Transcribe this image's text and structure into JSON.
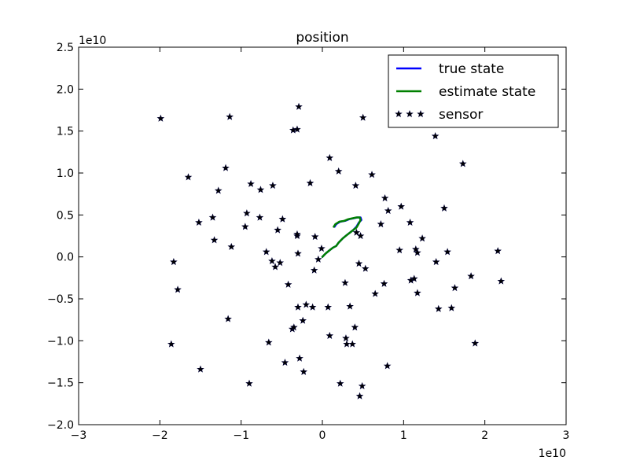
{
  "chart_data": {
    "type": "scatter",
    "title": "position",
    "xlabel": "",
    "ylabel": "",
    "x_offset_label": "1e10",
    "y_offset_label": "1e10",
    "xlim": [
      -3,
      3
    ],
    "ylim": [
      -2,
      2.5
    ],
    "x_ticks": [
      -3,
      -2,
      -1,
      0,
      1,
      2,
      3
    ],
    "x_tick_labels": [
      "−3",
      "−2",
      "−1",
      "0",
      "1",
      "2",
      "3"
    ],
    "y_ticks": [
      -2.0,
      -1.5,
      -1.0,
      -0.5,
      0.0,
      0.5,
      1.0,
      1.5,
      2.0,
      2.5
    ],
    "y_tick_labels": [
      "−2.0",
      "−1.5",
      "−1.0",
      "−0.5",
      "0.0",
      "0.5",
      "1.0",
      "1.5",
      "2.0",
      "2.5"
    ],
    "grid": false,
    "legend": {
      "position": "top-right",
      "entries": [
        {
          "label": "true state",
          "color": "#0000ff",
          "marker": "line"
        },
        {
          "label": "estimate state",
          "color": "#008000",
          "marker": "line"
        },
        {
          "label": "sensor",
          "color": "#000000",
          "marker": "star"
        }
      ]
    },
    "series": [
      {
        "name": "true state",
        "kind": "line",
        "color": "#0000ff",
        "x": [
          0.0,
          0.04,
          0.09,
          0.13,
          0.17,
          0.2,
          0.25,
          0.3,
          0.34,
          0.38,
          0.42,
          0.45,
          0.48,
          0.47,
          0.43,
          0.38,
          0.33,
          0.28,
          0.22,
          0.17,
          0.15
        ],
        "y": [
          0.0,
          0.04,
          0.08,
          0.11,
          0.13,
          0.17,
          0.22,
          0.26,
          0.29,
          0.32,
          0.36,
          0.41,
          0.44,
          0.47,
          0.47,
          0.46,
          0.45,
          0.43,
          0.42,
          0.39,
          0.36
        ]
      },
      {
        "name": "estimate state",
        "kind": "line",
        "color": "#008000",
        "x": [
          0.0,
          0.04,
          0.09,
          0.13,
          0.17,
          0.2,
          0.25,
          0.3,
          0.34,
          0.38,
          0.42,
          0.45,
          0.47,
          0.46,
          0.42,
          0.37,
          0.32,
          0.27,
          0.21,
          0.16,
          0.14
        ],
        "y": [
          0.0,
          0.04,
          0.08,
          0.11,
          0.13,
          0.17,
          0.22,
          0.26,
          0.29,
          0.32,
          0.35,
          0.4,
          0.44,
          0.47,
          0.47,
          0.46,
          0.45,
          0.43,
          0.42,
          0.39,
          0.36
        ]
      },
      {
        "name": "sensor",
        "kind": "scatter",
        "color": "#000000",
        "x": [
          -1.99,
          -1.65,
          -1.83,
          -1.86,
          -1.78,
          -1.52,
          -1.5,
          -1.35,
          -1.33,
          -1.28,
          -1.19,
          -1.16,
          -1.14,
          -1.12,
          -0.93,
          -0.95,
          -0.9,
          -0.88,
          -0.77,
          -0.76,
          -0.69,
          -0.66,
          -0.62,
          -0.61,
          -0.58,
          -0.55,
          -0.52,
          -0.49,
          -0.46,
          -0.42,
          -0.37,
          -0.35,
          -0.3,
          -0.3,
          -0.31,
          -0.28,
          -0.24,
          -0.23,
          -0.2,
          -0.15,
          -0.12,
          -0.1,
          -0.09,
          -0.05,
          -0.01,
          0.07,
          0.09,
          0.09,
          0.2,
          0.22,
          0.28,
          0.29,
          0.3,
          0.34,
          0.37,
          0.4,
          0.41,
          0.45,
          0.47,
          0.49,
          0.46,
          0.5,
          0.53,
          0.61,
          0.65,
          0.72,
          0.76,
          0.77,
          0.8,
          0.81,
          0.95,
          0.97,
          1.08,
          1.09,
          1.13,
          1.15,
          1.17,
          1.17,
          1.23,
          1.39,
          1.4,
          1.43,
          1.5,
          1.54,
          1.59,
          1.63,
          1.73,
          1.83,
          1.88,
          2.16,
          2.2,
          0.42,
          -0.31,
          -0.31,
          -0.36,
          -0.29
        ],
        "y": [
          1.65,
          0.95,
          -0.06,
          -1.04,
          -0.39,
          0.41,
          -1.34,
          0.47,
          0.2,
          0.79,
          1.06,
          -0.74,
          1.67,
          0.12,
          0.52,
          0.36,
          -1.51,
          0.87,
          0.47,
          0.8,
          0.06,
          -1.02,
          -0.05,
          0.85,
          -0.12,
          0.32,
          -0.07,
          0.45,
          -1.26,
          -0.33,
          -0.86,
          -0.84,
          0.04,
          -0.6,
          1.52,
          -1.21,
          -0.76,
          -1.37,
          -0.57,
          0.88,
          -0.6,
          -0.16,
          0.24,
          -0.03,
          0.1,
          -0.6,
          -0.94,
          1.18,
          1.02,
          -1.51,
          -0.31,
          -0.97,
          -1.04,
          -0.59,
          -1.04,
          -0.84,
          0.85,
          -0.08,
          0.25,
          -1.54,
          -1.66,
          1.66,
          -0.14,
          0.98,
          -0.44,
          0.39,
          -0.32,
          0.7,
          -1.3,
          0.55,
          0.08,
          0.6,
          0.41,
          -0.28,
          -0.26,
          0.09,
          -0.43,
          0.05,
          0.22,
          1.44,
          -0.06,
          -0.62,
          0.58,
          0.06,
          -0.61,
          -0.37,
          1.11,
          -0.23,
          -1.03,
          0.07,
          -0.29,
          0.29,
          0.25,
          0.27,
          1.51,
          1.79
        ]
      }
    ]
  }
}
